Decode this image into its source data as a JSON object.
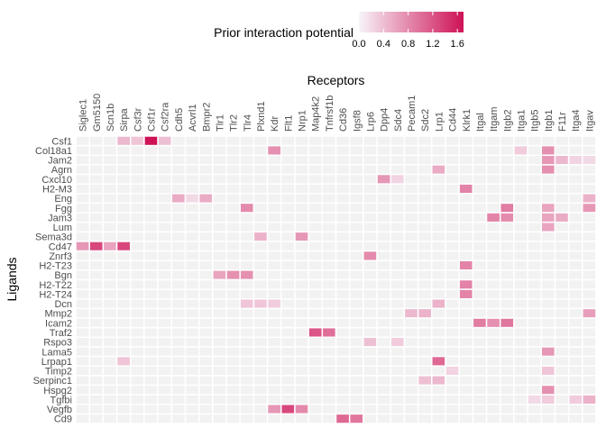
{
  "chart_data": {
    "type": "heatmap",
    "xlabel": "Receptors",
    "ylabel": "Ligands",
    "x_axis_position": "top",
    "grid": true,
    "legend": {
      "title": "Prior interaction potential",
      "position": "top",
      "ticks": [
        "0.0",
        "0.4",
        "0.8",
        "1.2",
        "1.6"
      ],
      "tick_values": [
        0,
        0.4,
        0.8,
        1.2,
        1.6
      ],
      "range": [
        0,
        1.7
      ]
    },
    "colors": {
      "low": "#f7f4f9",
      "high": "#ce1256",
      "empty": "#f2f2f2",
      "gap": "#ffffff"
    },
    "receptors": [
      "Siglec1",
      "Gm5150",
      "Scn1b",
      "Sirpa",
      "Csf3r",
      "Csf1r",
      "Csf2ra",
      "Cdh5",
      "Acvrl1",
      "Bmpr2",
      "Tlr1",
      "Tlr2",
      "Tlr4",
      "Plxnd1",
      "Kdr",
      "Flt1",
      "Nrp1",
      "Map4k2",
      "Tnfrsf1b",
      "Cd36",
      "Igsf8",
      "Lrp6",
      "Dpp4",
      "Sdc4",
      "Pecam1",
      "Sdc2",
      "Lrp1",
      "Cd44",
      "Klrk1",
      "Itgal",
      "Itgam",
      "Itgb2",
      "Itga1",
      "Itgb5",
      "Itgb1",
      "F11r",
      "Itga4",
      "Itgav"
    ],
    "ligands": [
      "Csf1",
      "Col18a1",
      "Jam2",
      "Agrn",
      "Cxcl10",
      "H2-M3",
      "Eng",
      "Fgg",
      "Jam3",
      "Lum",
      "Sema3d",
      "Cd47",
      "Znrf3",
      "H2-T23",
      "Bgn",
      "H2-T22",
      "H2-T24",
      "Dcn",
      "Mmp2",
      "Icam2",
      "Traf2",
      "Rspo3",
      "Lama5",
      "Lrpap1",
      "Timp2",
      "Serpinc1",
      "Hspg2",
      "Tgfbi",
      "Vegfb",
      "Cd9"
    ],
    "values": [
      [
        "Csf1",
        "Sirpa",
        0.45
      ],
      [
        "Csf1",
        "Csf3r",
        0.35
      ],
      [
        "Csf1",
        "Csf1r",
        1.7
      ],
      [
        "Csf1",
        "Csf2ra",
        0.4
      ],
      [
        "Col18a1",
        "Kdr",
        0.75
      ],
      [
        "Col18a1",
        "Itga1",
        0.3
      ],
      [
        "Col18a1",
        "Itgb1",
        0.75
      ],
      [
        "Jam2",
        "Itgb1",
        0.7
      ],
      [
        "Jam2",
        "F11r",
        0.45
      ],
      [
        "Jam2",
        "Itga4",
        0.25
      ],
      [
        "Jam2",
        "Itgav",
        0.2
      ],
      [
        "Agrn",
        "Lrp1",
        0.55
      ],
      [
        "Agrn",
        "Itgb1",
        0.75
      ],
      [
        "Cxcl10",
        "Dpp4",
        0.7
      ],
      [
        "Cxcl10",
        "Sdc4",
        0.25
      ],
      [
        "H2-M3",
        "Klrk1",
        0.85
      ],
      [
        "Eng",
        "Cdh5",
        0.55
      ],
      [
        "Eng",
        "Acvrl1",
        0.2
      ],
      [
        "Eng",
        "Bmpr2",
        0.55
      ],
      [
        "Eng",
        "Itgav",
        0.5
      ],
      [
        "Fgg",
        "Tlr4",
        0.8
      ],
      [
        "Fgg",
        "Itgb2",
        0.9
      ],
      [
        "Fgg",
        "Itgb1",
        0.6
      ],
      [
        "Fgg",
        "Itgav",
        0.7
      ],
      [
        "Jam3",
        "Itgam",
        0.85
      ],
      [
        "Jam3",
        "Itgb2",
        0.8
      ],
      [
        "Jam3",
        "Itgb1",
        0.6
      ],
      [
        "Jam3",
        "F11r",
        0.55
      ],
      [
        "Lum",
        "Itgb1",
        0.6
      ],
      [
        "Sema3d",
        "Plxnd1",
        0.5
      ],
      [
        "Sema3d",
        "Nrp1",
        0.7
      ],
      [
        "Cd47",
        "Siglec1",
        0.7
      ],
      [
        "Cd47",
        "Gm5150",
        1.3
      ],
      [
        "Cd47",
        "Scn1b",
        0.6
      ],
      [
        "Cd47",
        "Sirpa",
        1.3
      ],
      [
        "Znrf3",
        "Lrp6",
        0.8
      ],
      [
        "H2-T23",
        "Klrk1",
        0.85
      ],
      [
        "Bgn",
        "Tlr1",
        0.6
      ],
      [
        "Bgn",
        "Tlr2",
        0.75
      ],
      [
        "Bgn",
        "Tlr4",
        0.75
      ],
      [
        "H2-T22",
        "Klrk1",
        0.85
      ],
      [
        "H2-T24",
        "Klrk1",
        0.85
      ],
      [
        "Dcn",
        "Plxnd1",
        0.35
      ],
      [
        "Dcn",
        "Tlr4",
        0.35
      ],
      [
        "Dcn",
        "Kdr",
        0.3
      ],
      [
        "Dcn",
        "Lrp1",
        0.5
      ],
      [
        "Mmp2",
        "Pecam1",
        0.45
      ],
      [
        "Mmp2",
        "Sdc2",
        0.5
      ],
      [
        "Mmp2",
        "Itgav",
        0.65
      ],
      [
        "Icam2",
        "Itgal",
        0.9
      ],
      [
        "Icam2",
        "Itgam",
        0.75
      ],
      [
        "Icam2",
        "Itgb2",
        0.95
      ],
      [
        "Traf2",
        "Map4k2",
        1.2
      ],
      [
        "Traf2",
        "Tnfrsf1b",
        1.0
      ],
      [
        "Rspo3",
        "Lrp6",
        0.4
      ],
      [
        "Rspo3",
        "Sdc4",
        0.3
      ],
      [
        "Lama5",
        "Itgb1",
        0.7
      ],
      [
        "Lrpap1",
        "Sirpa",
        0.35
      ],
      [
        "Lrpap1",
        "Lrp1",
        1.05
      ],
      [
        "Timp2",
        "Cd44",
        0.25
      ],
      [
        "Timp2",
        "Itgb1",
        0.35
      ],
      [
        "Serpinc1",
        "Sdc2",
        0.4
      ],
      [
        "Serpinc1",
        "Lrp1",
        0.45
      ],
      [
        "Hspg2",
        "Itgb1",
        0.75
      ],
      [
        "Tgfbi",
        "Itgb5",
        0.2
      ],
      [
        "Tgfbi",
        "Itgb1",
        0.3
      ],
      [
        "Tgfbi",
        "Itga4",
        0.3
      ],
      [
        "Tgfbi",
        "Itgav",
        0.5
      ],
      [
        "Vegfb",
        "Kdr",
        0.7
      ],
      [
        "Vegfb",
        "Flt1",
        1.3
      ],
      [
        "Vegfb",
        "Nrp1",
        0.8
      ],
      [
        "Cd9",
        "Cd36",
        1.05
      ],
      [
        "Cd9",
        "Igsf8",
        0.95
      ]
    ]
  }
}
